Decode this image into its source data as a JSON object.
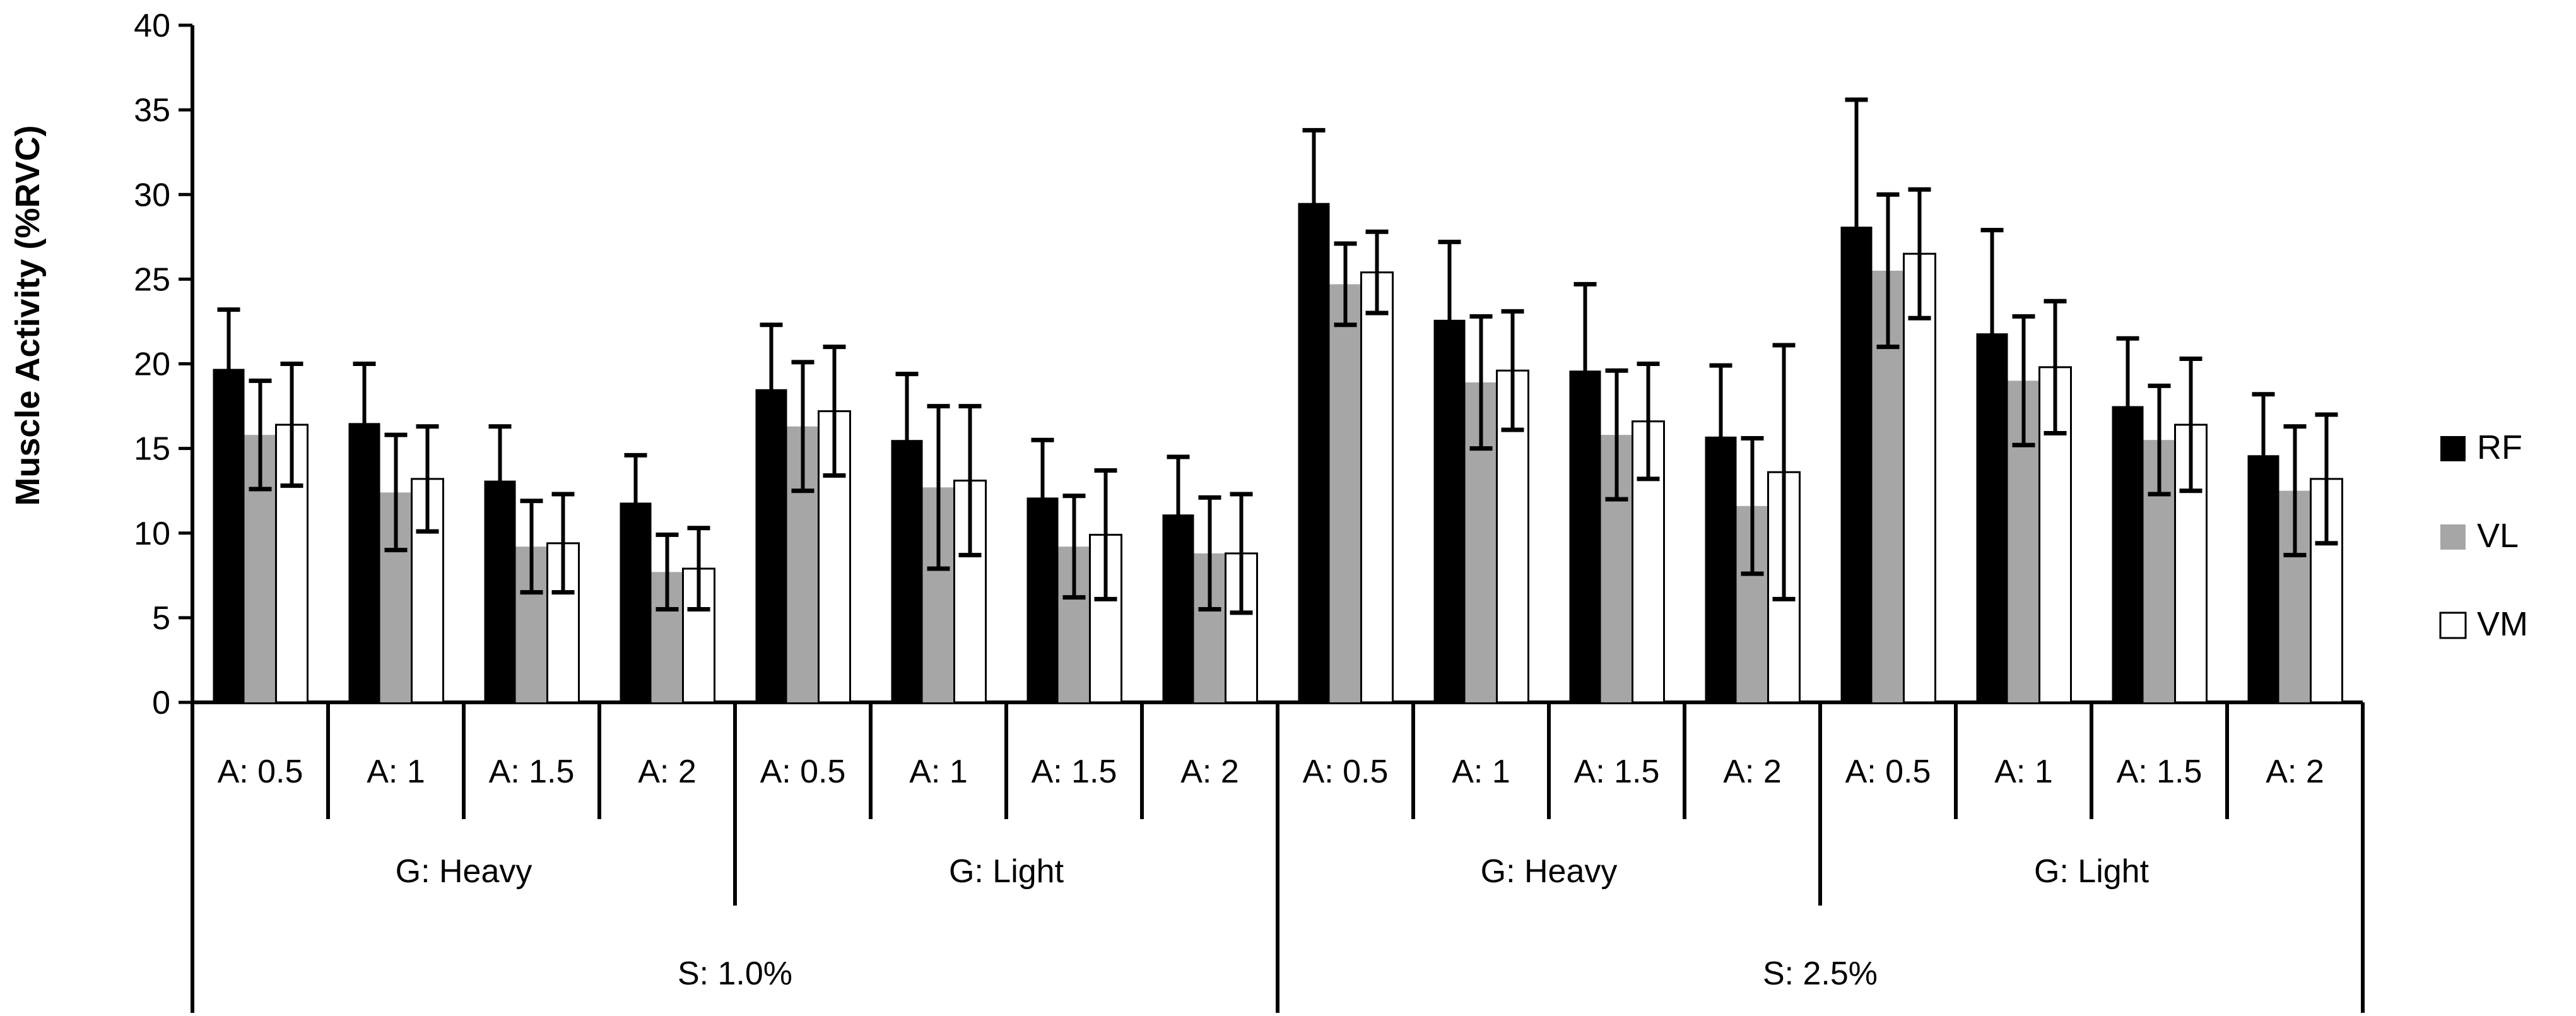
{
  "chart_data": {
    "type": "bar",
    "ylabel": "Muscle Activity (%RVC)",
    "ylim": [
      0,
      40
    ],
    "yticks": [
      0,
      5,
      10,
      15,
      20,
      25,
      30,
      35,
      40
    ],
    "grid": false,
    "legend_position": "right",
    "category_levels": {
      "A": [
        "A: 0.5",
        "A: 1",
        "A: 1.5",
        "A: 2",
        "A: 0.5",
        "A: 1",
        "A: 1.5",
        "A: 2",
        "A: 0.5",
        "A: 1",
        "A: 1.5",
        "A: 2",
        "A: 0.5",
        "A: 1",
        "A: 1.5",
        "A: 2"
      ],
      "G": [
        "G: Heavy",
        "G: Light",
        "G: Heavy",
        "G: Light"
      ],
      "S": [
        "S: 1.0%",
        "S: 2.5%"
      ]
    },
    "series": [
      {
        "name": "RF",
        "color": "#000000",
        "values": [
          19.7,
          16.5,
          13.1,
          11.8,
          18.5,
          15.5,
          12.1,
          11.1,
          29.5,
          22.6,
          19.6,
          15.7,
          28.1,
          21.8,
          17.5,
          14.6
        ],
        "errors": [
          3.5,
          3.5,
          3.2,
          2.8,
          3.8,
          3.9,
          3.4,
          3.4,
          4.3,
          4.6,
          5.1,
          4.2,
          7.5,
          6.1,
          4.0,
          3.6
        ]
      },
      {
        "name": "VL",
        "color": "#a6a6a6",
        "values": [
          15.8,
          12.4,
          9.2,
          7.7,
          16.3,
          12.7,
          9.2,
          8.8,
          24.7,
          18.9,
          15.8,
          11.6,
          25.5,
          19.0,
          15.5,
          12.5
        ],
        "errors": [
          3.2,
          3.4,
          2.7,
          2.2,
          3.8,
          4.8,
          3.0,
          3.3,
          2.4,
          3.9,
          3.8,
          4.0,
          4.5,
          3.8,
          3.2,
          3.8
        ]
      },
      {
        "name": "VM",
        "color": "#ffffff",
        "values": [
          16.4,
          13.2,
          9.4,
          7.9,
          17.2,
          13.1,
          9.9,
          8.8,
          25.4,
          19.6,
          16.6,
          13.6,
          26.5,
          19.8,
          16.4,
          13.2
        ],
        "errors": [
          3.6,
          3.1,
          2.9,
          2.4,
          3.8,
          4.4,
          3.8,
          3.5,
          2.4,
          3.5,
          3.4,
          7.5,
          3.8,
          3.9,
          3.9,
          3.8
        ]
      }
    ]
  }
}
